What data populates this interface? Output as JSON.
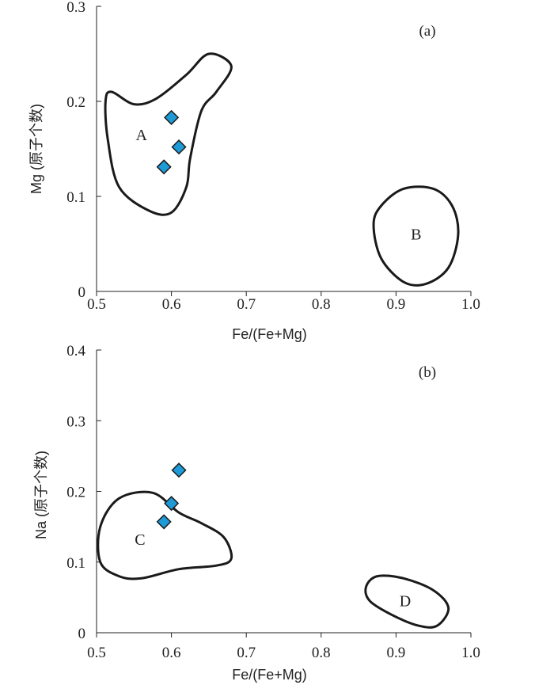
{
  "chart_data": [
    {
      "panel": "(a)",
      "type": "scatter",
      "xlabel": "Fe/(Fe+Mg)",
      "ylabel": "Mg (原子个数)",
      "xlim": [
        0.5,
        1.0
      ],
      "ylim": [
        0,
        0.3
      ],
      "xticks": [
        "0.5",
        "0.6",
        "0.7",
        "0.8",
        "0.9",
        "1.0"
      ],
      "yticks": [
        "0",
        "0.1",
        "0.2",
        "0.3"
      ],
      "points": [
        {
          "x": 0.6,
          "y": 0.183
        },
        {
          "x": 0.61,
          "y": 0.152
        },
        {
          "x": 0.59,
          "y": 0.131
        }
      ],
      "regions": [
        {
          "label": "A",
          "outline": [
            [
              0.52,
              0.21
            ],
            [
              0.55,
              0.197
            ],
            [
              0.58,
              0.203
            ],
            [
              0.62,
              0.228
            ],
            [
              0.65,
              0.25
            ],
            [
              0.68,
              0.237
            ],
            [
              0.66,
              0.21
            ],
            [
              0.64,
              0.19
            ],
            [
              0.625,
              0.14
            ],
            [
              0.62,
              0.11
            ],
            [
              0.6,
              0.083
            ],
            [
              0.57,
              0.085
            ],
            [
              0.53,
              0.11
            ],
            [
              0.515,
              0.16
            ],
            [
              0.512,
              0.2
            ]
          ]
        },
        {
          "label": "B",
          "outline": [
            [
              0.87,
              0.07
            ],
            [
              0.88,
              0.09
            ],
            [
              0.91,
              0.108
            ],
            [
              0.95,
              0.108
            ],
            [
              0.975,
              0.09
            ],
            [
              0.983,
              0.06
            ],
            [
              0.97,
              0.025
            ],
            [
              0.94,
              0.008
            ],
            [
              0.91,
              0.01
            ],
            [
              0.88,
              0.035
            ]
          ]
        }
      ],
      "marker_color": "#1e9bd7"
    },
    {
      "panel": "(b)",
      "type": "scatter",
      "xlabel": "Fe/(Fe+Mg)",
      "ylabel": "Na (原子个数)",
      "xlim": [
        0.5,
        1.0
      ],
      "ylim": [
        0,
        0.4
      ],
      "xticks": [
        "0.5",
        "0.6",
        "0.7",
        "0.8",
        "0.9",
        "1.0"
      ],
      "yticks": [
        "0",
        "0.1",
        "0.2",
        "0.3",
        "0.4"
      ],
      "points": [
        {
          "x": 0.61,
          "y": 0.23
        },
        {
          "x": 0.6,
          "y": 0.183
        },
        {
          "x": 0.59,
          "y": 0.157
        }
      ],
      "regions": [
        {
          "label": "C",
          "outline": [
            [
              0.505,
              0.15
            ],
            [
              0.53,
              0.19
            ],
            [
              0.575,
              0.198
            ],
            [
              0.61,
              0.17
            ],
            [
              0.64,
              0.155
            ],
            [
              0.67,
              0.135
            ],
            [
              0.68,
              0.105
            ],
            [
              0.66,
              0.095
            ],
            [
              0.61,
              0.09
            ],
            [
              0.56,
              0.077
            ],
            [
              0.53,
              0.08
            ],
            [
              0.505,
              0.1
            ]
          ]
        },
        {
          "label": "D",
          "outline": [
            [
              0.86,
              0.065
            ],
            [
              0.875,
              0.08
            ],
            [
              0.91,
              0.077
            ],
            [
              0.95,
              0.06
            ],
            [
              0.97,
              0.035
            ],
            [
              0.955,
              0.01
            ],
            [
              0.93,
              0.01
            ],
            [
              0.895,
              0.025
            ],
            [
              0.865,
              0.045
            ]
          ]
        }
      ],
      "marker_color": "#1e9bd7"
    }
  ]
}
